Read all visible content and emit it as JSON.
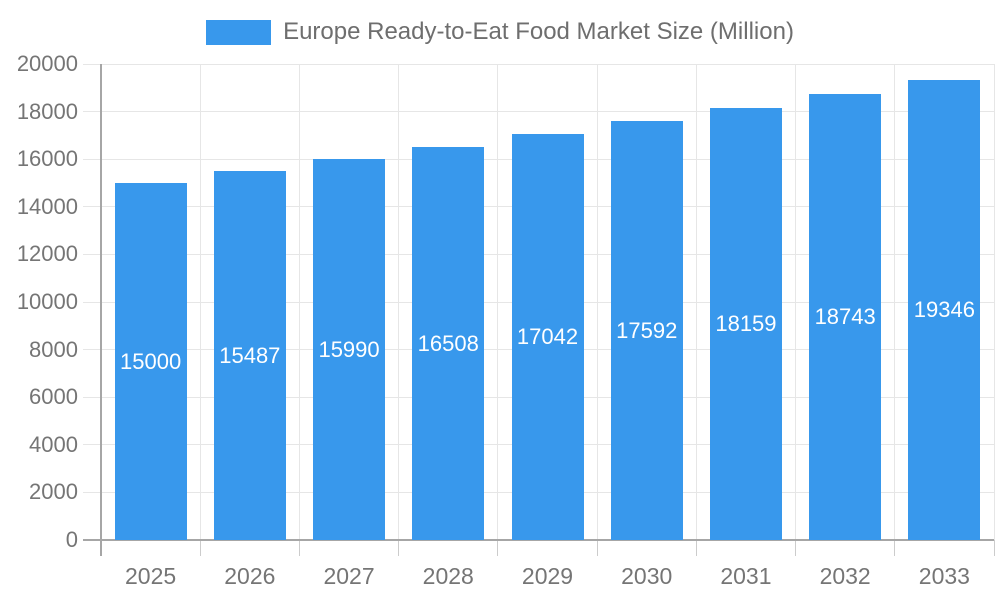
{
  "legend": {
    "label": "Europe Ready-to-Eat Food Market Size (Million)"
  },
  "chart_data": {
    "type": "bar",
    "title": "Europe Ready-to-Eat Food Market Size (Million)",
    "categories": [
      "2025",
      "2026",
      "2027",
      "2028",
      "2029",
      "2030",
      "2031",
      "2032",
      "2033"
    ],
    "values": [
      15000,
      15487,
      15990,
      16508,
      17042,
      17592,
      18159,
      18743,
      19346
    ],
    "xlabel": "",
    "ylabel": "",
    "ylim": [
      0,
      20000
    ],
    "y_ticks": [
      0,
      2000,
      4000,
      6000,
      8000,
      10000,
      12000,
      14000,
      16000,
      18000,
      20000
    ],
    "legend_position": "top",
    "grid": true,
    "bar_labels_inside": true,
    "colors": {
      "bar": "#3898EC",
      "bar_label": "#FFFFFF",
      "axis_text": "#757575",
      "legend_text": "#6E6E6E",
      "gridline": "#E6E6E6",
      "axis_line": "#A6A6A6",
      "minor_tick": "#CCCCCC",
      "background": "#FFFFFF"
    }
  }
}
